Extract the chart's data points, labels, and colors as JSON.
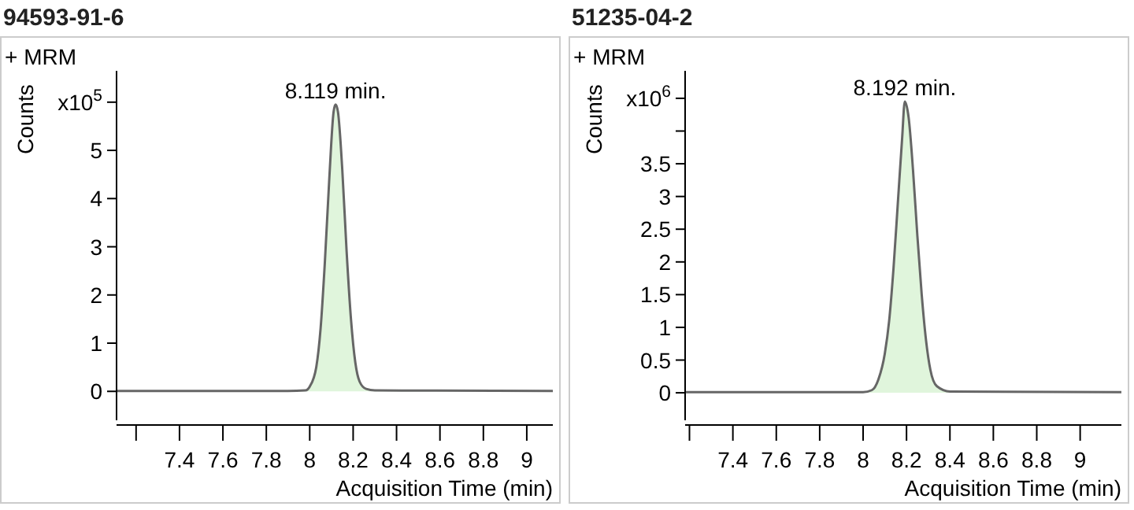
{
  "chart_data": [
    {
      "type": "area",
      "title": "94593-91-6",
      "xlabel": "Acquisition Time (min)",
      "ylabel": "Counts",
      "annotations": [
        "+ MRM",
        {
          "text": "8.119 min.",
          "x": 8.119,
          "y": 5.95
        }
      ],
      "xlim": [
        7.11,
        9.12
      ],
      "xticks": [
        {
          "value": 7.2,
          "label": null
        },
        7.4,
        7.6,
        7.8,
        8,
        8.2,
        8.4,
        8.6,
        8.8,
        9
      ],
      "ylim": [
        -0.6,
        6.65
      ],
      "yticks": [
        0,
        1,
        2,
        3,
        4,
        5,
        {
          "value": 6,
          "label": "x10$^{5}$"
        }
      ],
      "series": [
        {
          "color": "#e0f5dc",
          "x": [
            7.11,
            7.9,
            7.98,
            8.0,
            8.03,
            8.05,
            8.07,
            8.09,
            8.11,
            8.119,
            8.13,
            8.15,
            8.17,
            8.19,
            8.21,
            8.23,
            8.26,
            8.3,
            9.12
          ],
          "values": [
            0.01,
            0.01,
            0.02,
            0.1,
            0.5,
            1.3,
            2.7,
            4.4,
            5.8,
            5.95,
            5.8,
            4.6,
            2.9,
            1.5,
            0.6,
            0.2,
            0.05,
            0.02,
            0.01
          ]
        }
      ]
    },
    {
      "type": "area",
      "title": "51235-04-2",
      "xlabel": "Acquisition Time (min)",
      "ylabel": "Counts",
      "annotations": [
        "+ MRM",
        {
          "text": "8.192 min.",
          "x": 8.192,
          "y": 4.45
        }
      ],
      "xlim": [
        7.18,
        9.19
      ],
      "xticks": [
        {
          "value": 7.2,
          "label": null
        },
        7.4,
        7.6,
        7.8,
        8,
        8.2,
        8.4,
        8.6,
        8.8,
        9
      ],
      "ylim": [
        -0.42,
        4.92
      ],
      "yticks": [
        0,
        0.5,
        1,
        1.5,
        2,
        2.5,
        3,
        3.5,
        {
          "value": 4,
          "label": null
        },
        {
          "value": 4.5,
          "label": "x10$^{6}$"
        }
      ],
      "series": [
        {
          "color": "#e0f5dc",
          "x": [
            7.18,
            8.0,
            8.04,
            8.07,
            8.1,
            8.12,
            8.14,
            8.16,
            8.18,
            8.192,
            8.21,
            8.23,
            8.25,
            8.27,
            8.29,
            8.31,
            8.34,
            8.4,
            9.19
          ],
          "values": [
            0.01,
            0.01,
            0.04,
            0.2,
            0.6,
            1.1,
            1.9,
            2.9,
            3.9,
            4.45,
            4.2,
            3.4,
            2.4,
            1.5,
            0.8,
            0.35,
            0.1,
            0.02,
            0.01
          ]
        }
      ]
    }
  ]
}
